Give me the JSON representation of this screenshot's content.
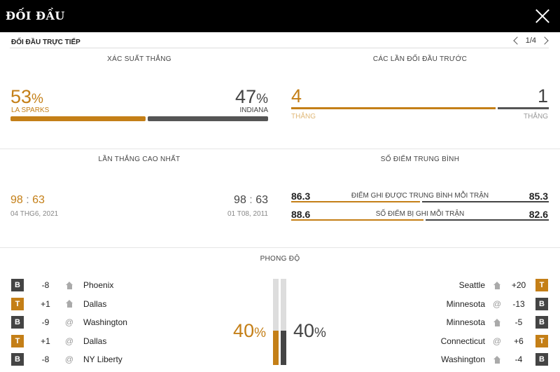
{
  "header": {
    "title": "ĐỐI ĐẦU"
  },
  "subheader": {
    "title": "ĐỐI ĐẦU TRỰC TIẾP",
    "pager": "1/4"
  },
  "win_prob": {
    "title": "XÁC SUẤT THẮNG",
    "home_value": "53",
    "home_name": "LA SPARKS",
    "away_value": "47",
    "away_name": "INDIANA",
    "pct": "%",
    "home_fraction": 0.53
  },
  "previous": {
    "title": "CÁC LẦN ĐỐI ĐẦU TRƯỚC",
    "home_wins": "4",
    "away_wins": "1",
    "home_label": "THẮNG",
    "away_label": "THẮNG",
    "home_fraction": 0.8
  },
  "highest_win": {
    "title": "LẦN THẮNG CAO NHẤT",
    "home_score_a": "98",
    "home_score_b": "63",
    "home_date": "04 THG6, 2021",
    "away_score_a": "98",
    "away_score_b": "63",
    "away_date": "01 T08, 2011",
    "sep": ":"
  },
  "avg_points": {
    "title": "SỐ ĐIỂM TRUNG BÌNH",
    "rows": [
      {
        "label": "ĐIỂM GHI ĐƯỢC TRUNG BÌNH MỖI TRẬN",
        "home": "86.3",
        "away": "85.3",
        "home_fraction": 0.503
      },
      {
        "label": "SỐ ĐIỂM BỊ GHI MỖI TRẬN",
        "home": "88.6",
        "away": "82.6",
        "home_fraction": 0.518
      }
    ]
  },
  "form": {
    "title": "PHONG ĐỘ",
    "home_pct": "40",
    "away_pct": "40",
    "pct": "%",
    "home_fraction": 0.4,
    "away_fraction": 0.4,
    "home": [
      {
        "result": "B",
        "diff": "-8",
        "venue": "home",
        "team": "Phoenix"
      },
      {
        "result": "T",
        "diff": "+1",
        "venue": "home",
        "team": "Dallas"
      },
      {
        "result": "B",
        "diff": "-9",
        "venue": "away",
        "team": "Washington"
      },
      {
        "result": "T",
        "diff": "+1",
        "venue": "away",
        "team": "Dallas"
      },
      {
        "result": "B",
        "diff": "-8",
        "venue": "away",
        "team": "NY Liberty"
      }
    ],
    "away": [
      {
        "result": "T",
        "diff": "+20",
        "venue": "home",
        "team": "Seattle"
      },
      {
        "result": "B",
        "diff": "-13",
        "venue": "away",
        "team": "Minnesota"
      },
      {
        "result": "B",
        "diff": "-5",
        "venue": "home",
        "team": "Minnesota"
      },
      {
        "result": "T",
        "diff": "+6",
        "venue": "away",
        "team": "Connecticut"
      },
      {
        "result": "B",
        "diff": "-4",
        "venue": "home",
        "team": "Washington"
      }
    ],
    "away_symbol": "@"
  },
  "colors": {
    "accent": "#c47f17",
    "dark": "#444444",
    "header_bg": "#000000"
  },
  "icons": {
    "close": "close-icon",
    "prev": "chevron-left-icon",
    "next": "chevron-right-icon",
    "home_venue": "house-icon"
  }
}
